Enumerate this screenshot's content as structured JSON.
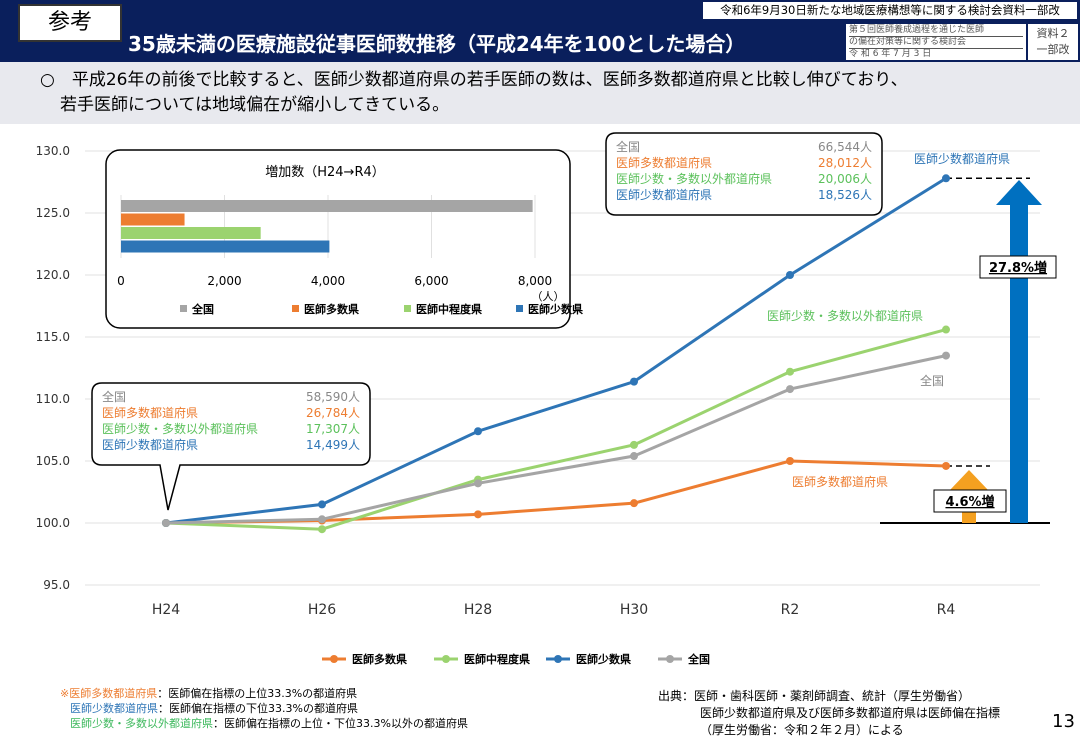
{
  "header": {
    "tag": "参考",
    "title": "35歳未満の医療施設従事医師数推移（平成24年を100とした場合）",
    "top_note": "令和6年9月30日新たな地域医療構想等に関する検討会資料一部改",
    "meeting_line1": "第５回医師養成過程を通じた医師",
    "meeting_line2": "の偏在対策等に関する検討会",
    "meeting_date": "令 和 6 年 7 月 3 日",
    "doc_label1": "資料２",
    "doc_label2": "一部改"
  },
  "lead": {
    "line1": "○　平成26年の前後で比較すると、医師少数都道府県の若手医師の数は、医師多数都道府県と比較し伸びており、",
    "line2": "若手医師については地域偏在が縮小してきている。"
  },
  "colors": {
    "orange": "#ed7d31",
    "green": "#9bd36f",
    "blue": "#2e75b6",
    "gray": "#a5a5a5",
    "arrow_blue": "#0070c0",
    "arrow_orange": "#f4a020"
  },
  "chart_data": {
    "type": "line",
    "categories": [
      "H24",
      "H26",
      "H28",
      "H30",
      "R2",
      "R4"
    ],
    "ylim": [
      95,
      130
    ],
    "yticks": [
      "95.0",
      "100.0",
      "105.0",
      "110.0",
      "115.0",
      "120.0",
      "125.0",
      "130.0"
    ],
    "series": [
      {
        "name": "医師多数県",
        "color": "#ed7d31",
        "values": [
          100,
          100.2,
          100.7,
          101.6,
          105.0,
          104.6
        ]
      },
      {
        "name": "医師中程度県",
        "color": "#9bd36f",
        "values": [
          100,
          99.5,
          103.5,
          106.3,
          112.2,
          115.6
        ]
      },
      {
        "name": "医師少数県",
        "color": "#2e75b6",
        "values": [
          100,
          101.5,
          107.4,
          111.4,
          120.0,
          127.8
        ]
      },
      {
        "name": "全国",
        "color": "#a5a5a5",
        "values": [
          100,
          100.3,
          103.2,
          105.4,
          110.8,
          113.5
        ]
      }
    ],
    "line_labels": {
      "blue": "医師少数都道府県",
      "green": "医師少数・多数以外都道府県",
      "gray": "全国",
      "orange": "医師多数都道府県"
    },
    "annotations": {
      "blue_increase": "27.8%増",
      "orange_increase": "4.6%増"
    },
    "callout_h24": [
      {
        "label": "全国",
        "value": "58,590人",
        "color": "#888888"
      },
      {
        "label": "医師多数都道府県",
        "value": "26,784人",
        "color": "#ed7d31"
      },
      {
        "label": "医師少数・多数以外都道府県",
        "value": "17,307人",
        "color": "#5cc15c"
      },
      {
        "label": "医師少数都道府県",
        "value": "14,499人",
        "color": "#2e75b6"
      }
    ],
    "callout_r4": [
      {
        "label": "全国",
        "value": "66,544人",
        "color": "#888888"
      },
      {
        "label": "医師多数都道府県",
        "value": "28,012人",
        "color": "#ed7d31"
      },
      {
        "label": "医師少数・多数以外都道府県",
        "value": "20,006人",
        "color": "#5cc15c"
      },
      {
        "label": "医師少数都道府県",
        "value": "18,526人",
        "color": "#2e75b6"
      }
    ],
    "inset": {
      "type": "bar",
      "title": "増加数（H24→R4）",
      "xlim": [
        0,
        8000
      ],
      "xticks": [
        "0",
        "2,000",
        "4,000",
        "6,000",
        "8,000"
      ],
      "unit": "（人）",
      "bars": [
        {
          "name": "全国",
          "value": 7954,
          "color": "#a5a5a5"
        },
        {
          "name": "医師多数県",
          "value": 1228,
          "color": "#ed7d31"
        },
        {
          "name": "医師中程度県",
          "value": 2699,
          "color": "#9bd36f"
        },
        {
          "name": "医師少数県",
          "value": 4027,
          "color": "#2e75b6"
        }
      ]
    }
  },
  "footer": {
    "note1_term": "※医師多数都道府県",
    "note1_def": "：医師偏在指標の上位33.3%の都道府県",
    "note2_term": "医師少数都道府県",
    "note2_def": "：医師偏在指標の下位33.3%の都道府県",
    "note3_term": "医師少数・多数以外都道府県",
    "note3_def": "：医師偏在指標の上位・下位33.3%以外の都道府県",
    "source1": "出典：医師・歯科医師・薬剤師調査、統計（厚生労働省）",
    "source2": "医師少数都道府県及び医師多数都道府県は医師偏在指標",
    "source3": "（厚生労働省：令和２年２月）による",
    "page": "13"
  }
}
